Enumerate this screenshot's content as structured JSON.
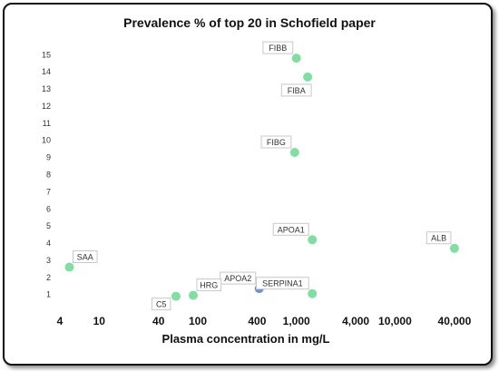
{
  "chart_data": {
    "type": "scatter",
    "title": "Prevalence % of top 20 in Schofield paper",
    "xlabel": "Plasma concentration in mg/L",
    "ylabel": "",
    "x_scale": "log",
    "xlim": [
      4,
      60000
    ],
    "ylim": [
      0.4,
      15.6
    ],
    "xticks": [
      {
        "value": 4,
        "label": "4"
      },
      {
        "value": 10,
        "label": "10"
      },
      {
        "value": 40,
        "label": "40"
      },
      {
        "value": 100,
        "label": "100"
      },
      {
        "value": 400,
        "label": "400"
      },
      {
        "value": 1000,
        "label": "1,000"
      },
      {
        "value": 4000,
        "label": "4,000"
      },
      {
        "value": 10000,
        "label": "10,000"
      },
      {
        "value": 40000,
        "label": "40,000"
      }
    ],
    "yticks": [
      1,
      2,
      3,
      4,
      5,
      6,
      7,
      8,
      9,
      10,
      11,
      12,
      13,
      14,
      15
    ],
    "grid": false,
    "points": [
      {
        "label": "FIBB",
        "x": 1000,
        "y": 14.8,
        "color": "#7ee0a0",
        "label_pos": "upper-left"
      },
      {
        "label": "FIBA",
        "x": 1300,
        "y": 13.7,
        "color": "#7ee0a0",
        "label_pos": "below"
      },
      {
        "label": "FIBG",
        "x": 960,
        "y": 9.3,
        "color": "#7ee0a0",
        "label_pos": "upper-left"
      },
      {
        "label": "APOA1",
        "x": 1450,
        "y": 4.2,
        "color": "#7ee0a0",
        "label_pos": "upper-left"
      },
      {
        "label": "ALB",
        "x": 40000,
        "y": 3.7,
        "color": "#7ee0a0",
        "label_pos": "upper-left"
      },
      {
        "label": "SAA",
        "x": 5,
        "y": 2.6,
        "color": "#7ee0a0",
        "label_pos": "upper-right"
      },
      {
        "label": "APOA2",
        "x": 420,
        "y": 1.35,
        "color": "#6a8ee8",
        "label_pos": "upper-left"
      },
      {
        "label": "SERPINA1",
        "x": 1450,
        "y": 1.05,
        "color": "#7ee0a0",
        "label_pos": "upper-left"
      },
      {
        "label": "HRG",
        "x": 90,
        "y": 0.95,
        "color": "#7ee0a0",
        "label_pos": "upper-right"
      },
      {
        "label": "C5",
        "x": 60,
        "y": 0.9,
        "color": "#7ee0a0",
        "label_pos": "lower-left"
      }
    ]
  }
}
